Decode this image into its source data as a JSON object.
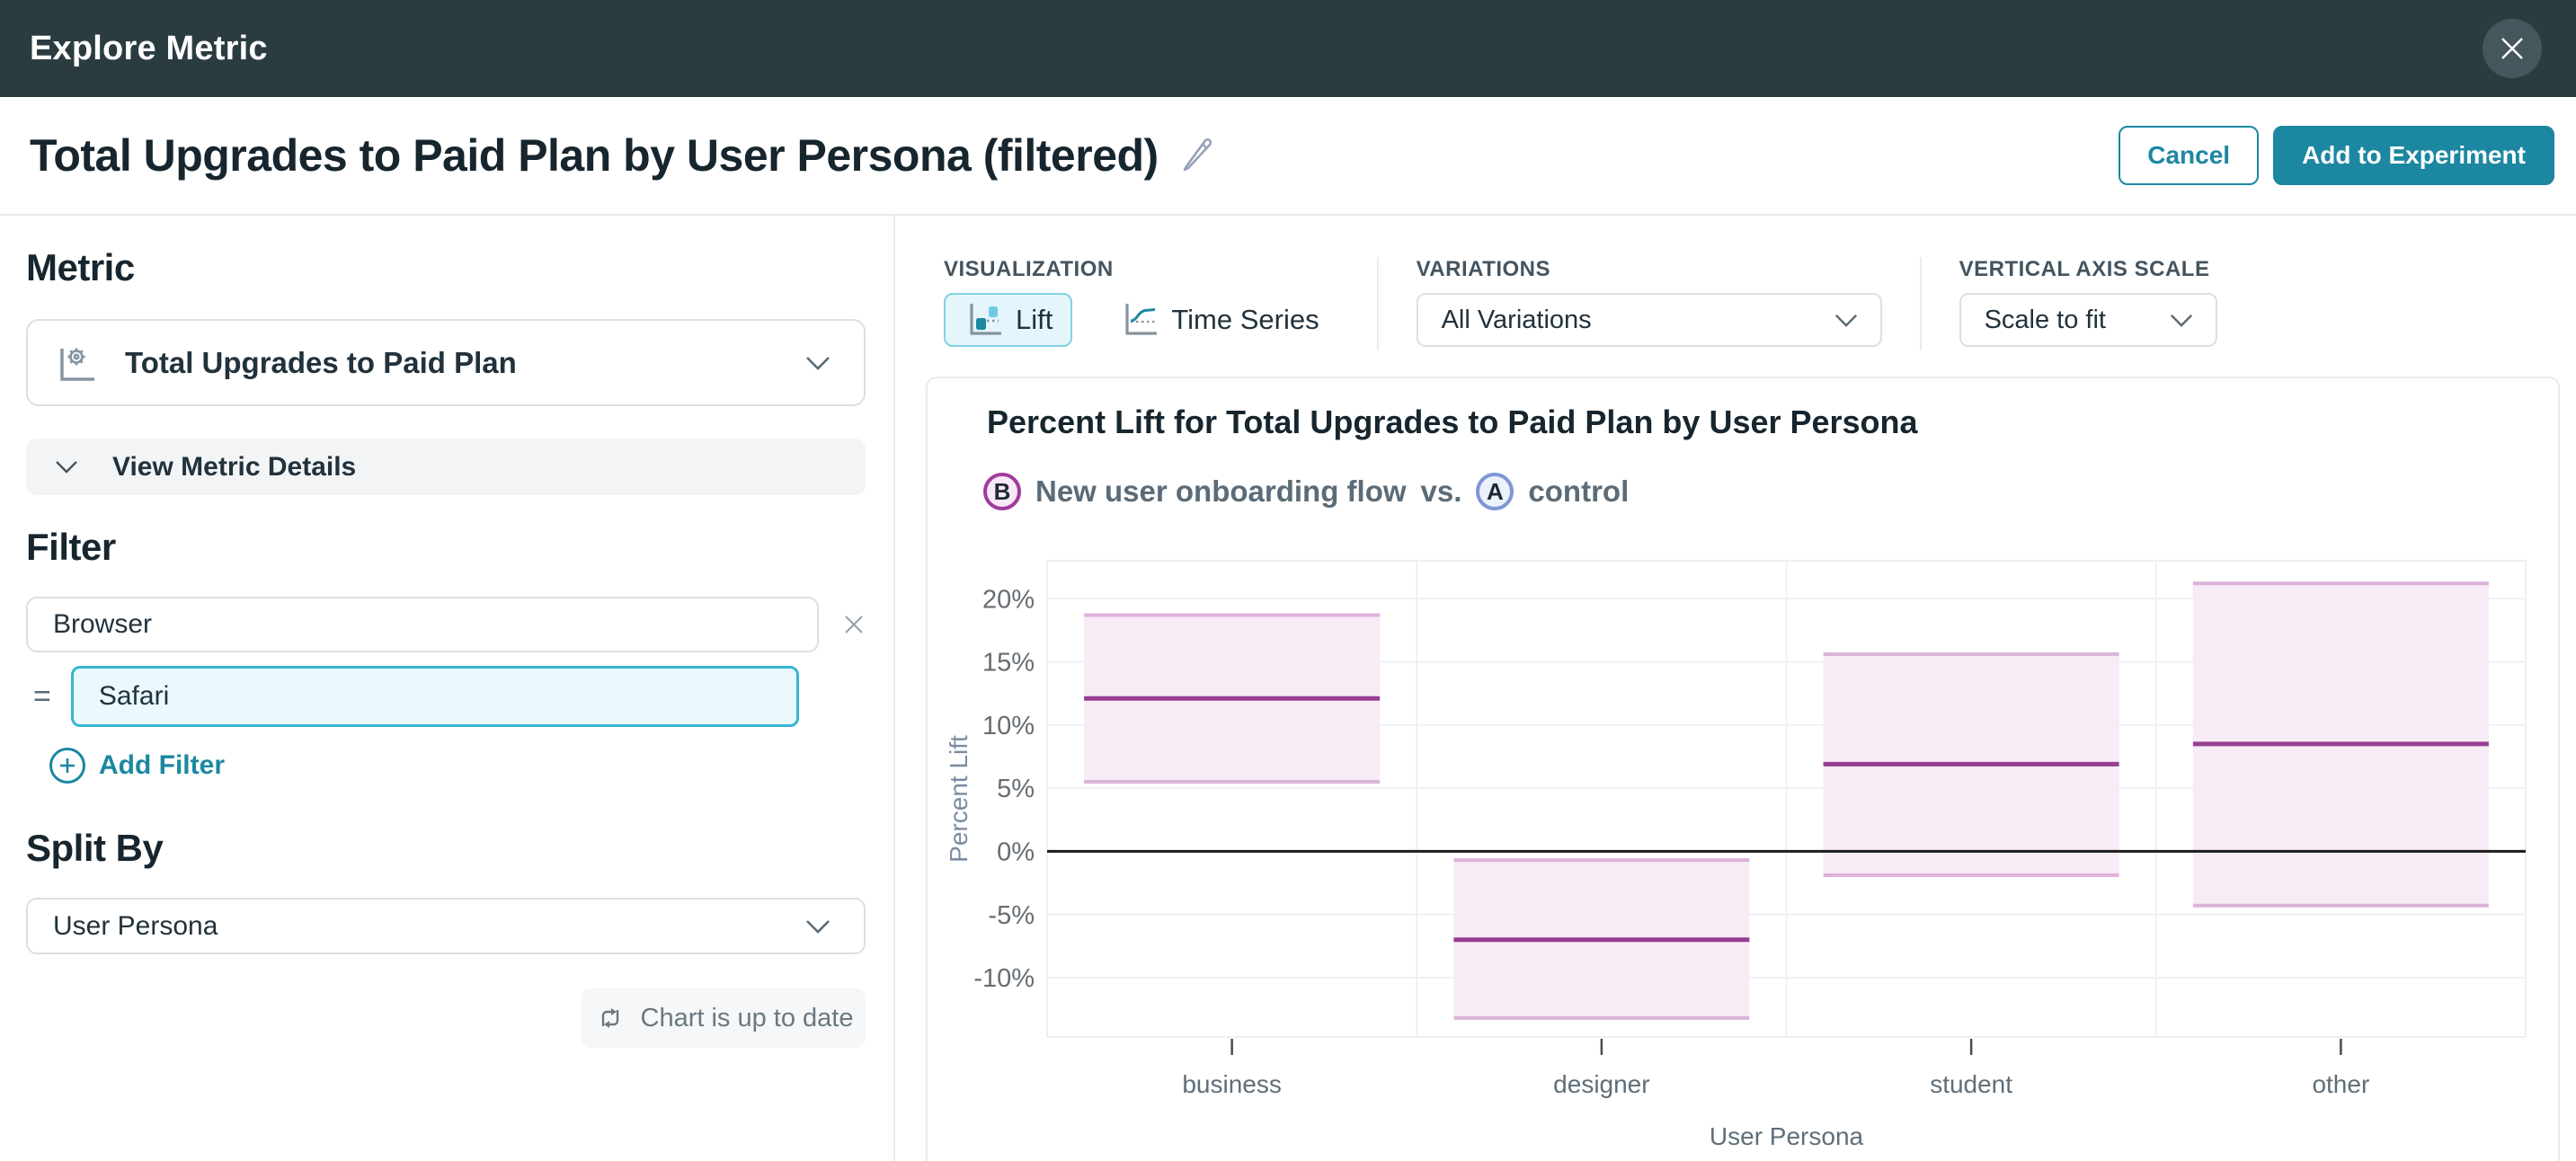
{
  "header": {
    "title": "Explore Metric"
  },
  "title_bar": {
    "title": "Total Upgrades to Paid Plan by User Persona (filtered)",
    "cancel_label": "Cancel",
    "add_label": "Add to Experiment"
  },
  "left_panel": {
    "metric_heading": "Metric",
    "metric_value": "Total Upgrades to Paid Plan",
    "view_details_label": "View Metric Details",
    "filter_heading": "Filter",
    "filter_field_value": "Browser",
    "filter_operator": "=",
    "filter_value": "Safari",
    "add_filter_label": "Add Filter",
    "split_heading": "Split By",
    "split_value": "User Persona",
    "status_label": "Chart is up to date"
  },
  "toolbar": {
    "visualization_label": "VISUALIZATION",
    "lift_label": "Lift",
    "time_series_label": "Time Series",
    "variations_label": "VARIATIONS",
    "variations_value": "All Variations",
    "axis_scale_label": "VERTICAL AXIS SCALE",
    "axis_scale_value": "Scale to fit"
  },
  "chart": {
    "title": "Percent Lift for Total Upgrades to Paid Plan by User Persona",
    "legend": {
      "b_label": "B",
      "b_name": "New user onboarding flow",
      "vs": "vs.",
      "a_label": "A",
      "a_name": "control"
    }
  },
  "chart_data": {
    "type": "bar",
    "subtype": "lift-confidence-interval-boxes",
    "title": "Percent Lift for Total Upgrades to Paid Plan by User Persona",
    "categories": [
      "business",
      "designer",
      "student",
      "other"
    ],
    "series": [
      {
        "name": "New user onboarding flow vs. control",
        "mean_lift_pct": [
          12.1,
          -7.0,
          6.9,
          8.5
        ],
        "ci_low_pct": [
          5.5,
          -13.2,
          -1.9,
          -4.3
        ],
        "ci_high_pct": [
          18.7,
          -0.7,
          15.6,
          21.2
        ]
      }
    ],
    "xlabel": "User Persona",
    "ylabel": "Percent Lift",
    "ytick_labels": [
      "20%",
      "15%",
      "10%",
      "5%",
      "0%",
      "-5%",
      "-10%"
    ],
    "yticks": [
      20,
      15,
      10,
      5,
      0,
      -5,
      -10
    ],
    "ylim": [
      -14.7,
      23
    ],
    "zero_line": true,
    "grid": true,
    "legend_position": "top-left"
  },
  "icons": {
    "close": "close-icon (x in circle)",
    "edit": "pencil-icon",
    "metric": "metric-gear-axes-icon",
    "chevron": "chevron-down-icon",
    "remove": "close-x-icon",
    "add": "plus-circle-icon",
    "status": "sync-arrows-icon",
    "lift": "lift-chart-icon",
    "time_series": "line-chart-icon"
  },
  "colors": {
    "header_bg": "#2b3c41",
    "close_bg": "#45565c",
    "accent": "#1c87a1",
    "heading": "#17252e",
    "text_dark": "#22323c",
    "label_gray": "#44545f",
    "muted": "#5b6b77",
    "border": "#d9e0e6",
    "border_light": "#e7ecef",
    "soft_bg": "#f2f4f6",
    "chip_bg": "#f5f7f8",
    "chip_text": "#6a7881",
    "safari_border": "#36b6d4",
    "safari_bg": "#e9f9fd",
    "lift_bg": "#e4f6fc",
    "lift_border": "#82d2e6",
    "bar_fill": "#f7ebf6",
    "bar_edge": "#dcb3da",
    "bar_mean": "#973e93",
    "grid": "#edf1f6",
    "zero_line": "#1b1b1b",
    "legend_b_border": "#a23a9c",
    "legend_b_bg": "#f8e9f6",
    "legend_a_border": "#7e97d3",
    "legend_a_bg": "#edf1fb",
    "gray_icon": "#8494a0",
    "tick_text": "#666d73",
    "axis_text": "#5f6e79"
  }
}
